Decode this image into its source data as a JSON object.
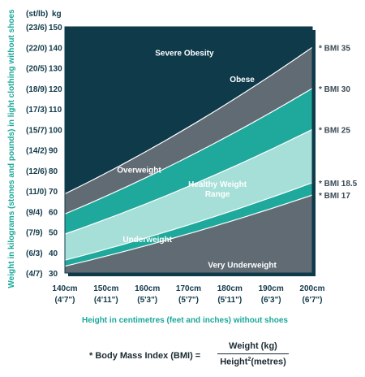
{
  "chart_data": {
    "type": "area",
    "x_range_cm": [
      140,
      200
    ],
    "y_range_kg": [
      30,
      150
    ],
    "x_ticks": [
      {
        "cm": 140,
        "label": "140cm",
        "sub": "(4'7\")"
      },
      {
        "cm": 150,
        "label": "150cm",
        "sub": "(4'11\")"
      },
      {
        "cm": 160,
        "label": "160cm",
        "sub": "(5'3\")"
      },
      {
        "cm": 170,
        "label": "170cm",
        "sub": "(5'7\")"
      },
      {
        "cm": 180,
        "label": "180cm",
        "sub": "(5'11\")"
      },
      {
        "cm": 190,
        "label": "190cm",
        "sub": "(6'3\")"
      },
      {
        "cm": 200,
        "label": "200cm",
        "sub": "(6'7\")"
      }
    ],
    "y_ticks": [
      {
        "kg": 150,
        "label": "150",
        "stlb": "(23/6)"
      },
      {
        "kg": 140,
        "label": "140",
        "stlb": "(22/0)"
      },
      {
        "kg": 130,
        "label": "130",
        "stlb": "(20/5)"
      },
      {
        "kg": 120,
        "label": "120",
        "stlb": "(18/9)"
      },
      {
        "kg": 110,
        "label": "110",
        "stlb": "(17/3)"
      },
      {
        "kg": 100,
        "label": "100",
        "stlb": "(15/7)"
      },
      {
        "kg": 90,
        "label": "90",
        "stlb": "(14/2)"
      },
      {
        "kg": 80,
        "label": "80",
        "stlb": "(12/6)"
      },
      {
        "kg": 70,
        "label": "70",
        "stlb": "(11/0)"
      },
      {
        "kg": 60,
        "label": "60",
        "stlb": "(9/4)"
      },
      {
        "kg": 50,
        "label": "50",
        "stlb": "(7/9)"
      },
      {
        "kg": 40,
        "label": "40",
        "stlb": "(6/3)"
      },
      {
        "kg": 30,
        "label": "30",
        "stlb": "(4/7)"
      }
    ],
    "bmi_lines": [
      {
        "bmi": 35,
        "label": "* BMI 35"
      },
      {
        "bmi": 30,
        "label": "* BMI 30"
      },
      {
        "bmi": 25,
        "label": "* BMI 25"
      },
      {
        "bmi": 18.5,
        "label": "* BMI 18.5"
      },
      {
        "bmi": 17,
        "label": "* BMI 17"
      }
    ],
    "regions": [
      {
        "name": "Severe Obesity",
        "color": "#0e3a4a"
      },
      {
        "name": "Obese",
        "color": "#606b73"
      },
      {
        "name": "Overweight",
        "color": "#1ea99c"
      },
      {
        "name": "Healthy Weight Range",
        "label_lines": [
          "Healthy Weight",
          "Range"
        ],
        "color": "#a6dfd8"
      },
      {
        "name": "Underweight",
        "color": "#1ea99c"
      },
      {
        "name": "Very Underweight",
        "color": "#606b73"
      }
    ],
    "unit_headers": {
      "stlb": "(st/lb)",
      "kg": "kg"
    },
    "xlabel": "Height in centimetres (feet and inches) without shoes",
    "ylabel": "Weight in kilograms (stones and pounds) in light clothing without shoes",
    "line_color": "#ffffff",
    "border_color": "#0e3a4a"
  },
  "formula": {
    "lhs": "* Body Mass Index (BMI) =",
    "numerator": "Weight (kg)",
    "denominator_base": "Height",
    "denominator_sup": "2",
    "denominator_unit": "(metres)"
  }
}
